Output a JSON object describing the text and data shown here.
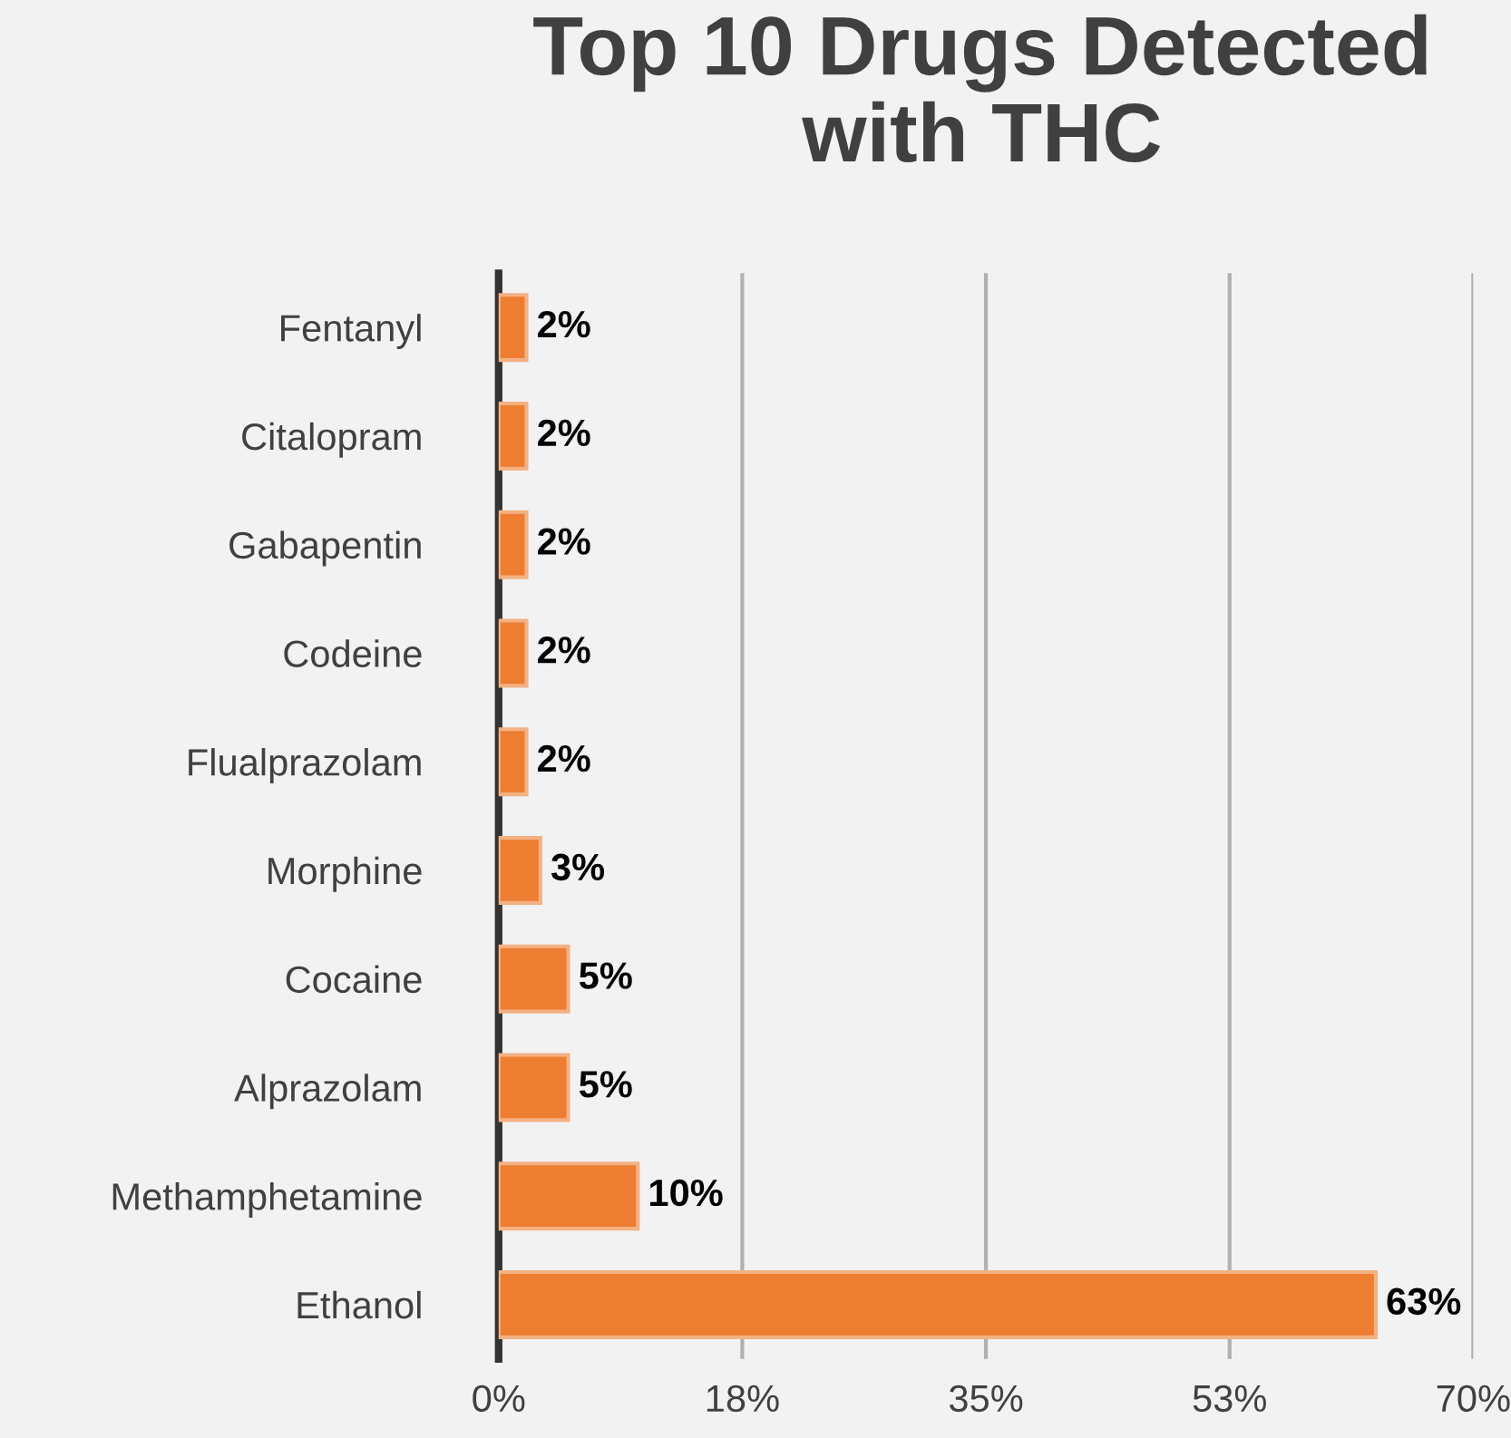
{
  "chart_data": {
    "type": "bar",
    "orientation": "horizontal",
    "title": "Top 10 Drugs Detected\nwith THC",
    "categories": [
      "Fentanyl",
      "Citalopram",
      "Gabapentin",
      "Codeine",
      "Flualprazolam",
      "Morphine",
      "Cocaine",
      "Alprazolam",
      "Methamphetamine",
      "Ethanol"
    ],
    "values": [
      2,
      2,
      2,
      2,
      2,
      3,
      5,
      5,
      10,
      63
    ],
    "color": "#ed7d31",
    "value_labels": [
      "2%",
      "2%",
      "2%",
      "2%",
      "2%",
      "3%",
      "5%",
      "5%",
      "10%",
      "63%"
    ],
    "xlim": [
      0,
      70
    ],
    "xticks": [
      {
        "value": 0,
        "label": "0%"
      },
      {
        "value": 17.5,
        "label": "18%"
      },
      {
        "value": 35,
        "label": "35%"
      },
      {
        "value": 52.5,
        "label": "53%"
      },
      {
        "value": 70,
        "label": "70%"
      }
    ],
    "grid": "x",
    "legend": false
  }
}
